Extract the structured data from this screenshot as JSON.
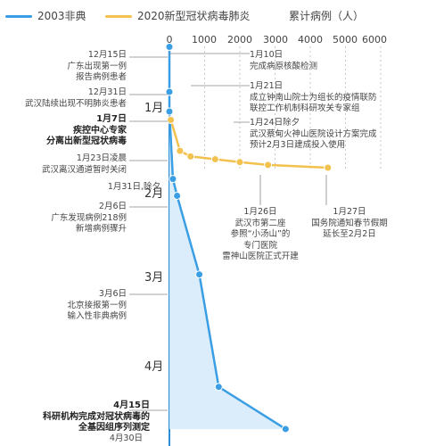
{
  "legend": {
    "sars_label": "2003非典",
    "covid_label": "2020新型冠状病毒肺炎",
    "cumulative_label": "累计病例（人）",
    "sars_color": "#3a9ee4",
    "covid_color": "#f2c14e"
  },
  "chart_data": {
    "type": "line",
    "xlabel": "累计病例（人）",
    "xlim": [
      0,
      6000
    ],
    "x_ticks": [
      "0",
      "1000",
      "2000",
      "3000",
      "4000",
      "5000",
      "6000"
    ],
    "y_labels": [
      "1月",
      "2月",
      "3月",
      "4月"
    ],
    "series": [
      {
        "name": "2003非典",
        "points": [
          {
            "date": "12-15",
            "value": 0
          },
          {
            "date": "12-31",
            "value": 0
          },
          {
            "date": "01-07",
            "value": 0
          },
          {
            "date": "01-31",
            "value": 100
          },
          {
            "date": "02-06",
            "value": 218
          },
          {
            "date": "03-06",
            "value": 850
          },
          {
            "date": "04-15",
            "value": 1400
          },
          {
            "date": "04-30",
            "value": 3300
          }
        ]
      },
      {
        "name": "2020新型冠状病毒肺炎",
        "points": [
          {
            "date": "01-10",
            "value": 41
          },
          {
            "date": "01-21",
            "value": 300
          },
          {
            "date": "01-23",
            "value": 600
          },
          {
            "date": "01-24",
            "value": 1300
          },
          {
            "date": "01-25",
            "value": 2000
          },
          {
            "date": "01-26",
            "value": 2800
          },
          {
            "date": "01-27",
            "value": 4500
          }
        ]
      }
    ]
  },
  "annotations": {
    "a1": "12月15日\n广东出现第一例\n报告病例患者",
    "a2": "12月31日\n武汉陆续出现不明肺炎患者",
    "a3": "1月7日\n疾控中心专家\n分离出新型冠状病毒",
    "a4": "1月23日凌晨\n武汉离汉通道暂时关闭",
    "a5": "1月31日,除夕",
    "a6": "2月6日\n广东发现病例218例\n新增病例骤升",
    "a7": "3月6日\n北京接报第一例\n输入性非典病例",
    "a8": "4月15日\n科研机构完成对冠状病毒的\n全基因组序列测定",
    "a9": "4月30日",
    "r1": "1月10日\n完成病原核酸检测",
    "r2": "1月21日\n成立钟南山院士为组长的疫情联防\n联控工作机制科研攻关专家组",
    "r3": "1月24日除夕\n武汉蔡甸火神山医院设计方案完成\n预计2月3日建成投入使用",
    "r4": "1月26日\n武汉市第二座\n参照“小汤山”的\n专门医院\n雷神山医院正式开建",
    "r5": "1月27日\n国务院通知春节假期\n延长至2月2日"
  }
}
